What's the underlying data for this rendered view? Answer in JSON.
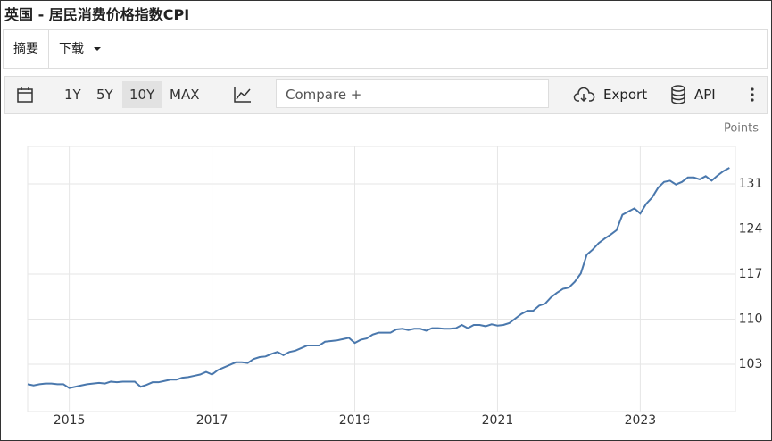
{
  "header": {
    "title": "英国 - 居民消费价格指数CPI"
  },
  "tabs": [
    "摘要",
    "下载"
  ],
  "toolbar": {
    "ranges": [
      "1Y",
      "5Y",
      "10Y",
      "MAX"
    ],
    "compare": "Compare +",
    "export": "Export",
    "api": "API"
  },
  "chart_data": {
    "type": "line",
    "ylabel": "Points",
    "color": "#4a78ad",
    "grid": true,
    "xlim": [
      2014.417,
      2024.333
    ],
    "xticks": [
      2015,
      2017,
      2019,
      2021,
      2023
    ],
    "ylim": [
      95.65,
      136.82
    ],
    "yticks": [
      103,
      110,
      117,
      124,
      131
    ],
    "x": [
      2014.417,
      2014.5,
      2014.583,
      2014.667,
      2014.75,
      2014.833,
      2014.917,
      2015,
      2015.083,
      2015.167,
      2015.25,
      2015.333,
      2015.417,
      2015.5,
      2015.583,
      2015.667,
      2015.75,
      2015.833,
      2015.917,
      2016,
      2016.083,
      2016.167,
      2016.25,
      2016.333,
      2016.417,
      2016.5,
      2016.583,
      2016.667,
      2016.75,
      2016.833,
      2016.917,
      2017,
      2017.083,
      2017.167,
      2017.25,
      2017.333,
      2017.417,
      2017.5,
      2017.583,
      2017.667,
      2017.75,
      2017.833,
      2017.917,
      2018,
      2018.083,
      2018.167,
      2018.25,
      2018.333,
      2018.417,
      2018.5,
      2018.583,
      2018.667,
      2018.75,
      2018.833,
      2018.917,
      2019,
      2019.083,
      2019.167,
      2019.25,
      2019.333,
      2019.417,
      2019.5,
      2019.583,
      2019.667,
      2019.75,
      2019.833,
      2019.917,
      2020,
      2020.083,
      2020.167,
      2020.25,
      2020.333,
      2020.417,
      2020.5,
      2020.583,
      2020.667,
      2020.75,
      2020.833,
      2020.917,
      2021,
      2021.083,
      2021.167,
      2021.25,
      2021.333,
      2021.417,
      2021.5,
      2021.583,
      2021.667,
      2021.75,
      2021.833,
      2021.917,
      2022,
      2022.083,
      2022.167,
      2022.25,
      2022.333,
      2022.417,
      2022.5,
      2022.583,
      2022.667,
      2022.75,
      2022.833,
      2022.917,
      2023,
      2023.083,
      2023.167,
      2023.25,
      2023.333,
      2023.417,
      2023.5,
      2023.583,
      2023.667,
      2023.75,
      2023.833,
      2023.917,
      2024,
      2024.083,
      2024.167,
      2024.25
    ],
    "values": [
      99.9,
      99.7,
      99.9,
      100.0,
      100.0,
      99.9,
      99.9,
      99.3,
      99.5,
      99.7,
      99.9,
      100.0,
      100.1,
      100.0,
      100.3,
      100.2,
      100.3,
      100.3,
      100.3,
      99.5,
      99.8,
      100.2,
      100.2,
      100.4,
      100.6,
      100.6,
      100.9,
      101.0,
      101.2,
      101.4,
      101.8,
      101.4,
      102.1,
      102.5,
      102.9,
      103.3,
      103.3,
      103.2,
      103.8,
      104.1,
      104.2,
      104.6,
      104.9,
      104.4,
      104.9,
      105.1,
      105.5,
      105.9,
      105.9,
      105.9,
      106.5,
      106.6,
      106.7,
      106.9,
      107.1,
      106.3,
      106.8,
      107.0,
      107.6,
      107.9,
      107.9,
      107.9,
      108.4,
      108.5,
      108.3,
      108.5,
      108.5,
      108.2,
      108.6,
      108.6,
      108.5,
      108.5,
      108.6,
      109.1,
      108.6,
      109.1,
      109.1,
      108.9,
      109.2,
      109.0,
      109.1,
      109.4,
      110.1,
      110.8,
      111.3,
      111.3,
      112.1,
      112.4,
      113.4,
      114.1,
      114.7,
      114.9,
      115.8,
      117.1,
      120.0,
      120.8,
      121.8,
      122.5,
      123.1,
      123.8,
      126.2,
      126.7,
      127.2,
      126.4,
      127.9,
      128.9,
      130.4,
      131.3,
      131.5,
      130.9,
      131.3,
      132.0,
      132.0,
      131.7,
      132.2,
      131.5,
      132.3,
      133.0,
      133.5
    ]
  }
}
